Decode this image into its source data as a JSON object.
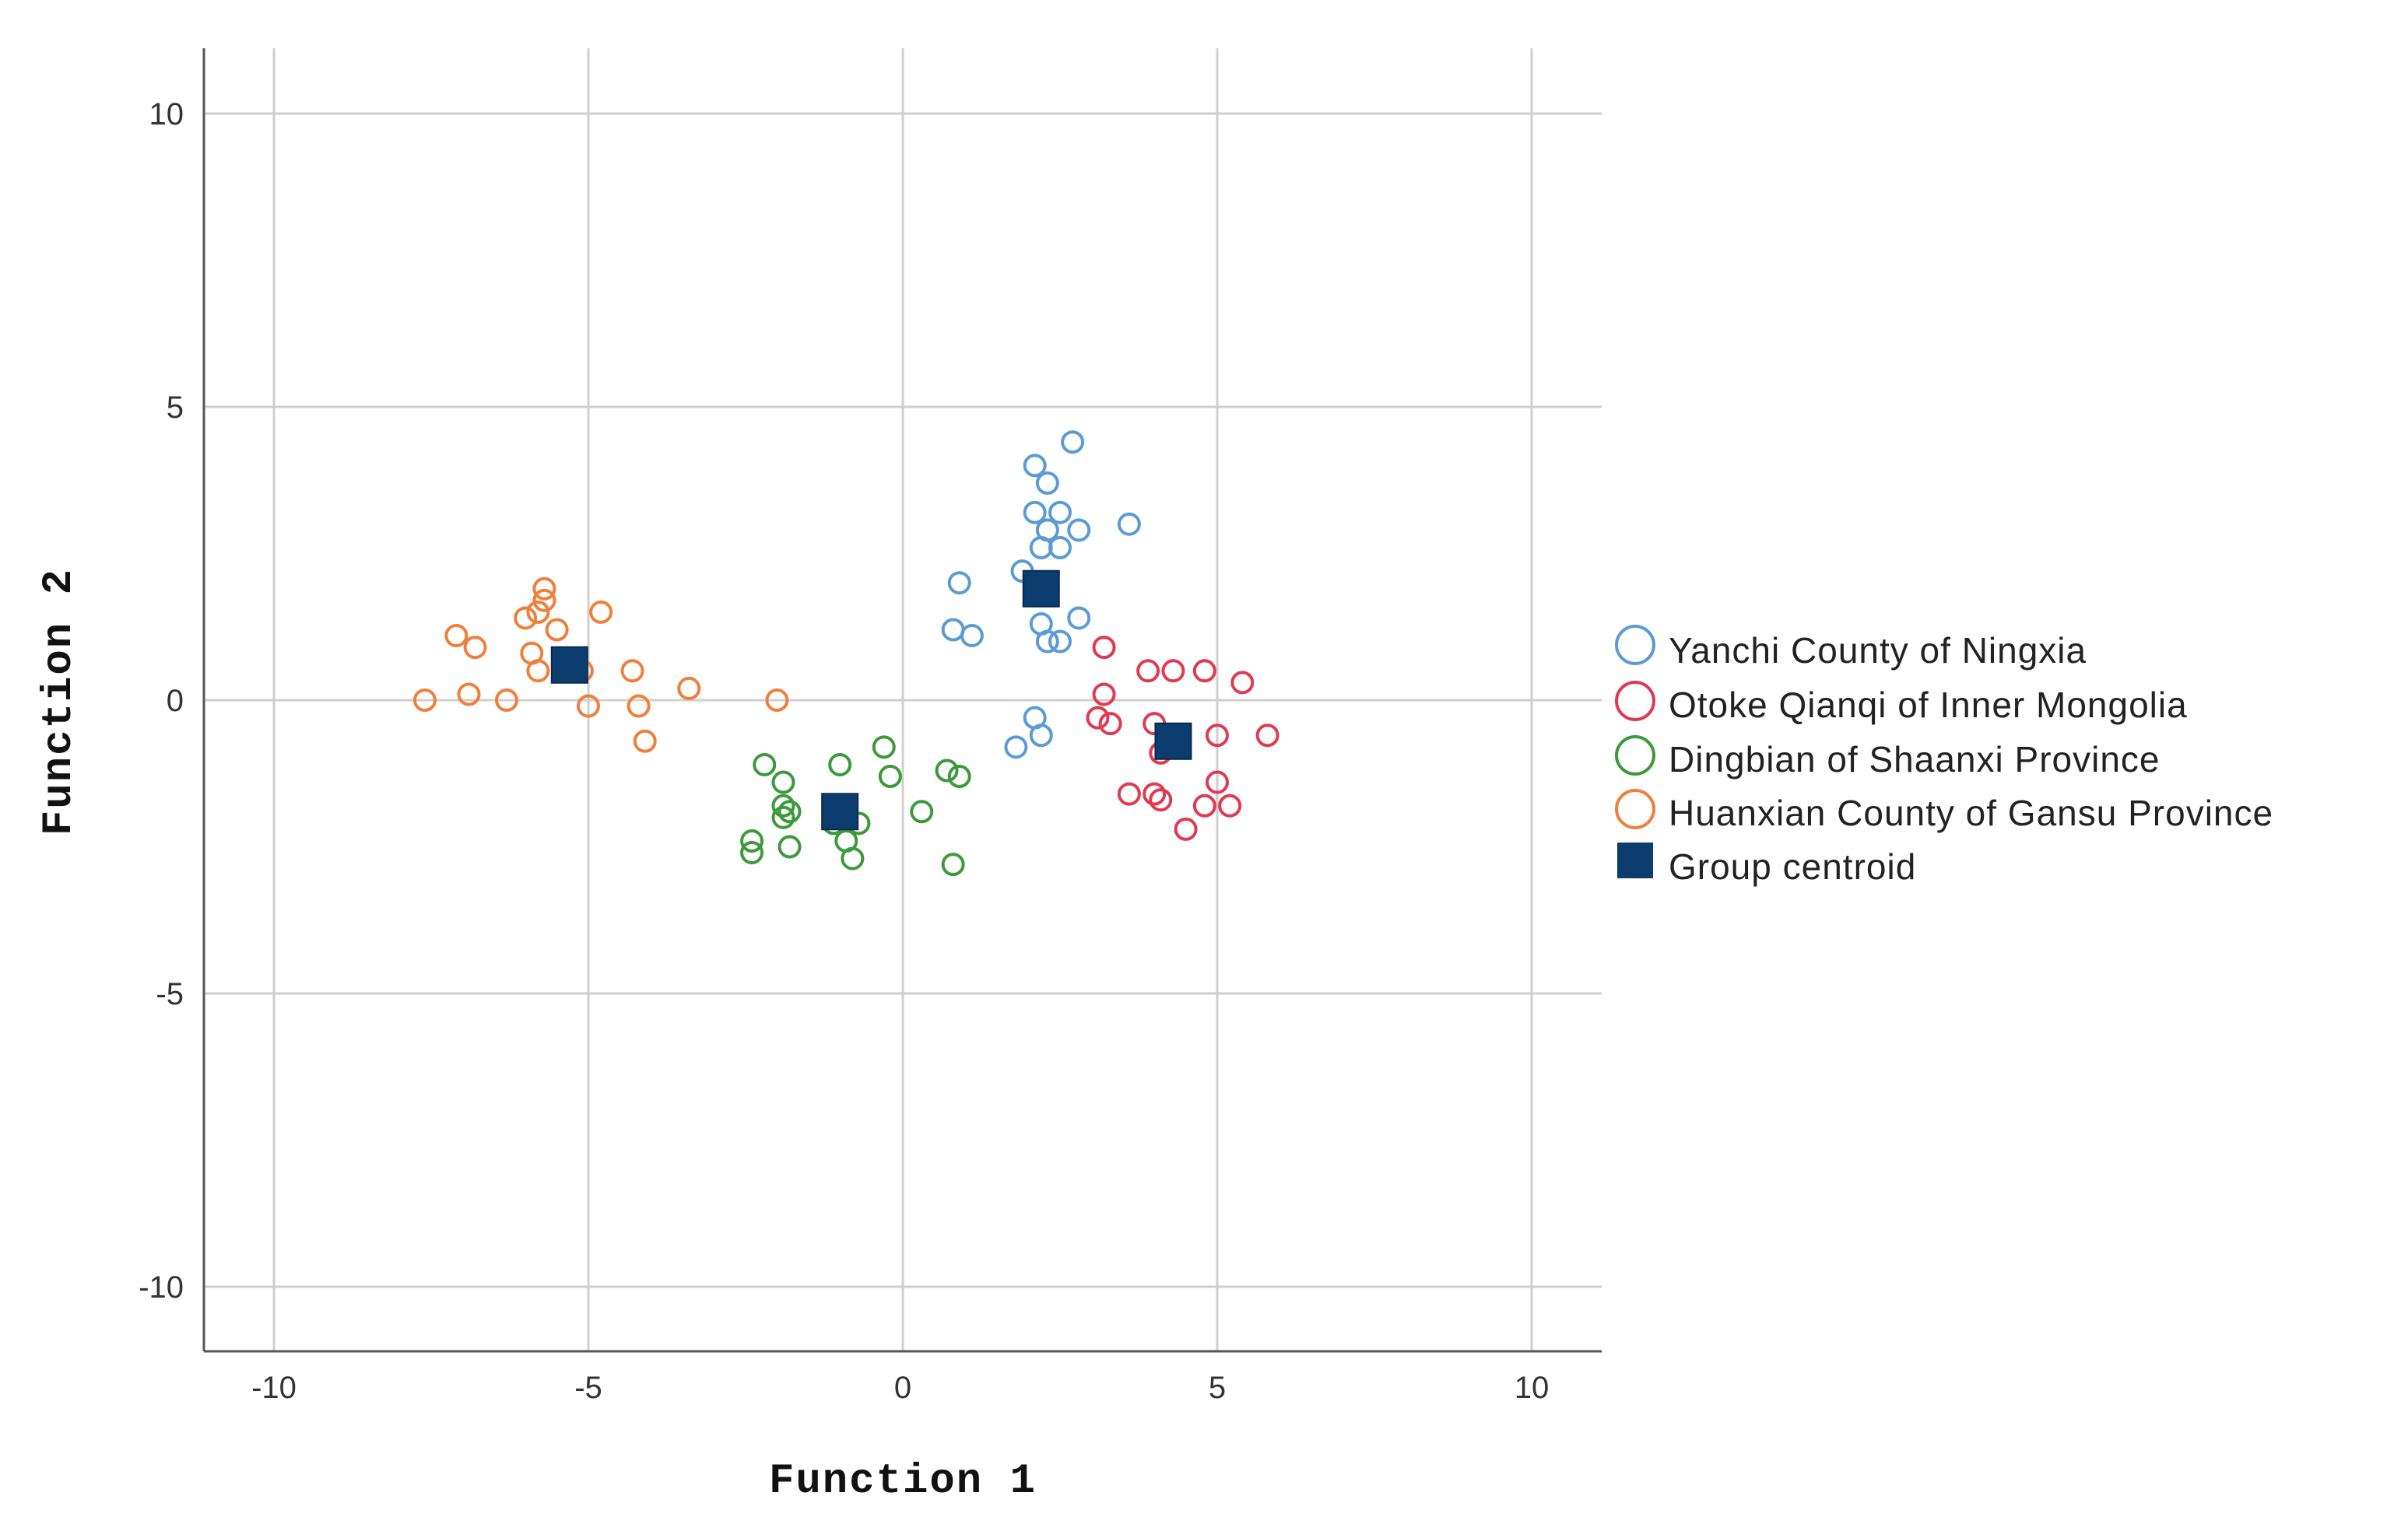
{
  "chart_data": {
    "type": "scatter",
    "xlabel": "Function 1",
    "ylabel": "Function 2",
    "xlim": [
      -11.1,
      11.1
    ],
    "ylim": [
      -11.1,
      11.1
    ],
    "xticks": [
      -10,
      -5,
      0,
      5,
      10
    ],
    "yticks": [
      10,
      5,
      0,
      -5,
      -10
    ],
    "grid": true,
    "legend_position": "right",
    "series": [
      {
        "name": "Yanchi County of Ningxia",
        "color": "#5b9bd5",
        "marker": "open-circle",
        "points": [
          [
            2.7,
            4.4
          ],
          [
            2.1,
            4.0
          ],
          [
            2.3,
            3.7
          ],
          [
            2.1,
            3.2
          ],
          [
            2.5,
            3.2
          ],
          [
            3.6,
            3.0
          ],
          [
            2.3,
            2.9
          ],
          [
            2.8,
            2.9
          ],
          [
            2.2,
            2.6
          ],
          [
            2.5,
            2.6
          ],
          [
            1.9,
            2.2
          ],
          [
            0.9,
            2.0
          ],
          [
            2.2,
            1.8
          ],
          [
            0.8,
            1.2
          ],
          [
            1.1,
            1.1
          ],
          [
            2.8,
            1.4
          ],
          [
            2.2,
            1.3
          ],
          [
            2.3,
            1.0
          ],
          [
            2.5,
            1.0
          ],
          [
            2.1,
            -0.3
          ],
          [
            2.2,
            -0.6
          ],
          [
            1.8,
            -0.8
          ]
        ]
      },
      {
        "name": "Otoke Qianqi of Inner Mongolia",
        "color": "#e03a52",
        "marker": "open-circle",
        "points": [
          [
            3.2,
            0.9
          ],
          [
            3.2,
            0.1
          ],
          [
            3.9,
            0.5
          ],
          [
            4.3,
            0.5
          ],
          [
            4.8,
            0.5
          ],
          [
            5.4,
            0.3
          ],
          [
            3.1,
            -0.3
          ],
          [
            3.3,
            -0.4
          ],
          [
            4.0,
            -0.4
          ],
          [
            4.1,
            -0.9
          ],
          [
            5.0,
            -0.6
          ],
          [
            5.8,
            -0.6
          ],
          [
            3.6,
            -1.6
          ],
          [
            4.0,
            -1.6
          ],
          [
            4.1,
            -1.7
          ],
          [
            4.8,
            -1.8
          ],
          [
            5.0,
            -1.4
          ],
          [
            5.2,
            -1.8
          ],
          [
            4.5,
            -2.2
          ]
        ]
      },
      {
        "name": "Dingbian of Shaanxi Province",
        "color": "#3c9a3c",
        "marker": "open-circle",
        "points": [
          [
            -2.2,
            -1.1
          ],
          [
            -1.9,
            -1.4
          ],
          [
            -1.0,
            -1.1
          ],
          [
            -0.3,
            -0.8
          ],
          [
            -1.9,
            -1.8
          ],
          [
            -1.8,
            -1.9
          ],
          [
            -1.9,
            -2.0
          ],
          [
            -1.1,
            -2.1
          ],
          [
            -0.7,
            -2.1
          ],
          [
            -2.4,
            -2.4
          ],
          [
            -1.8,
            -2.5
          ],
          [
            -0.9,
            -2.4
          ],
          [
            -2.4,
            -2.6
          ],
          [
            -0.8,
            -2.7
          ],
          [
            0.3,
            -1.9
          ],
          [
            -0.2,
            -1.3
          ],
          [
            0.7,
            -1.2
          ],
          [
            0.9,
            -1.3
          ],
          [
            0.8,
            -2.8
          ]
        ]
      },
      {
        "name": "Huanxian County of Gansu Province",
        "color": "#ef7f3c",
        "marker": "open-circle",
        "points": [
          [
            -5.7,
            1.9
          ],
          [
            -5.7,
            1.7
          ],
          [
            -5.8,
            1.5
          ],
          [
            -6.0,
            1.4
          ],
          [
            -4.8,
            1.5
          ],
          [
            -5.5,
            1.2
          ],
          [
            -7.1,
            1.1
          ],
          [
            -6.8,
            0.9
          ],
          [
            -5.9,
            0.8
          ],
          [
            -5.8,
            0.5
          ],
          [
            -5.1,
            0.5
          ],
          [
            -4.3,
            0.5
          ],
          [
            -3.4,
            0.2
          ],
          [
            -6.9,
            0.1
          ],
          [
            -6.3,
            0.0
          ],
          [
            -7.6,
            0.0
          ],
          [
            -5.0,
            -0.1
          ],
          [
            -4.2,
            -0.1
          ],
          [
            -2.0,
            0.0
          ],
          [
            -4.1,
            -0.7
          ]
        ]
      },
      {
        "name": "Group centroid",
        "color": "#0d3c6e",
        "marker": "filled-square",
        "points": [
          [
            2.2,
            1.9
          ],
          [
            4.3,
            -0.7
          ],
          [
            -1.0,
            -1.9
          ],
          [
            -5.3,
            0.6
          ]
        ]
      }
    ]
  }
}
